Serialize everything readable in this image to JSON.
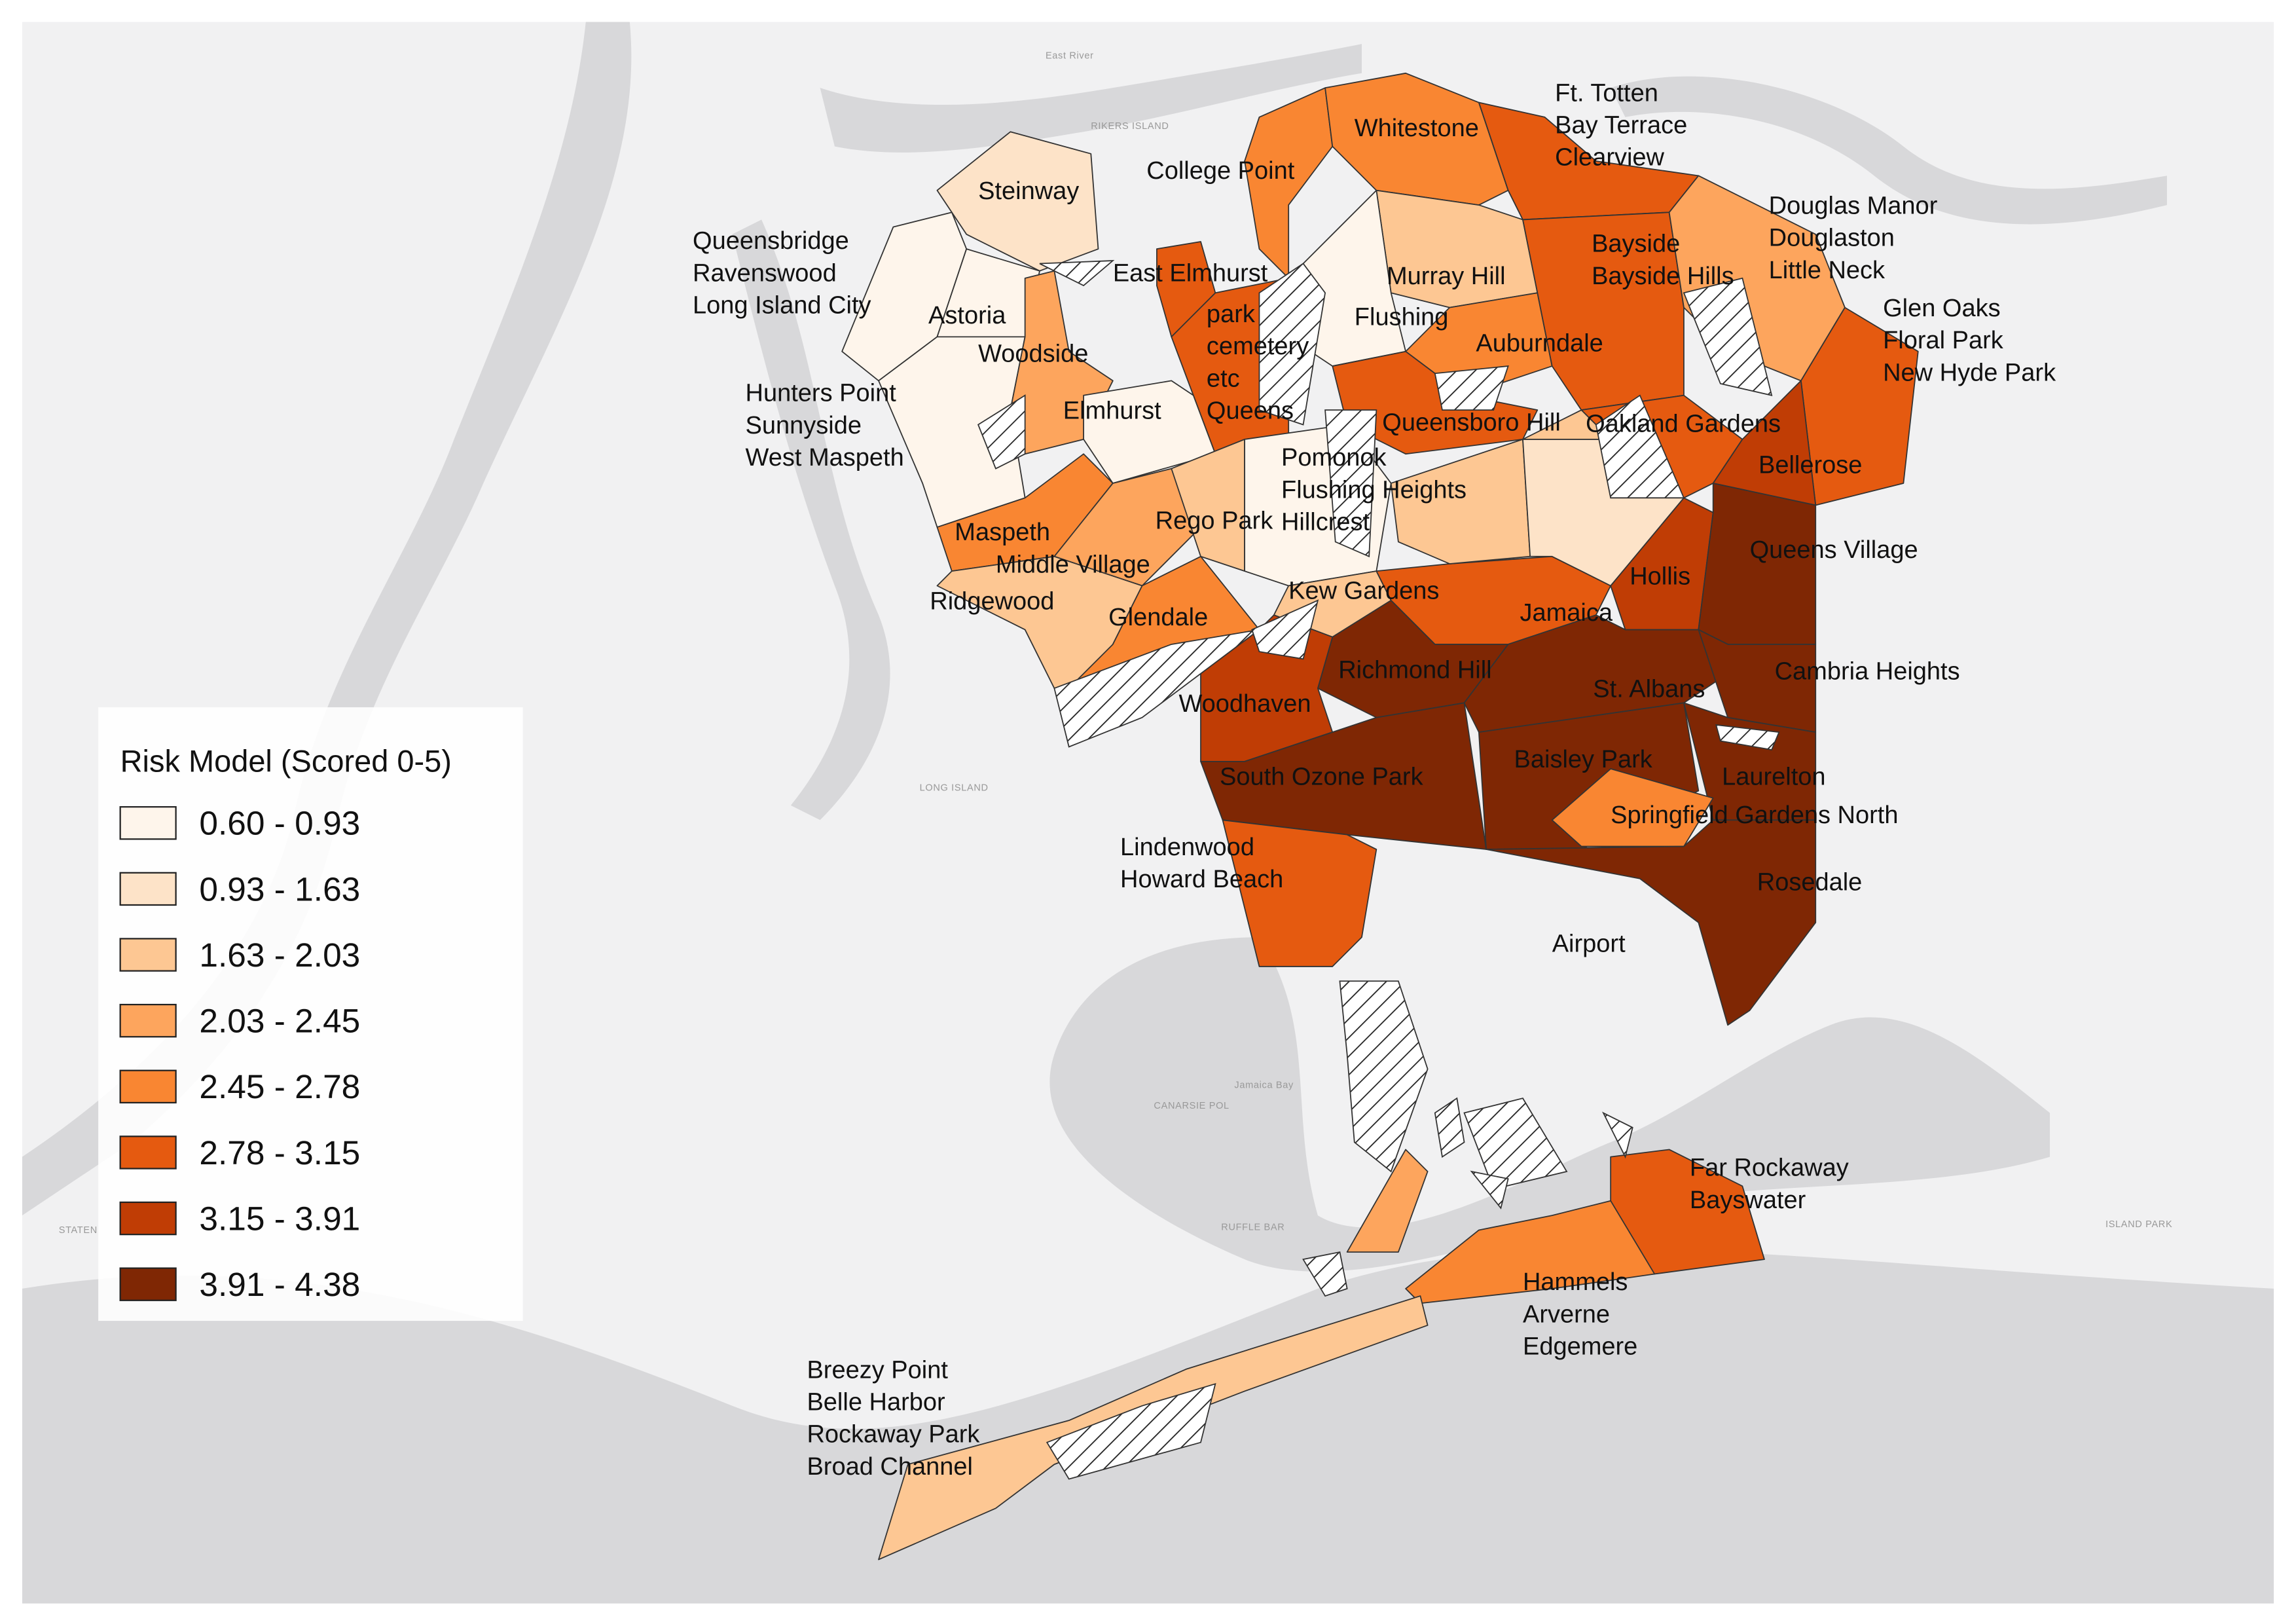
{
  "legend": {
    "title": "Risk Model (Scored 0-5)",
    "classes": [
      {
        "label": "0.60 - 0.93",
        "color": "#fef5eb"
      },
      {
        "label": "0.93 - 1.63",
        "color": "#fde3c8"
      },
      {
        "label": "1.63 - 2.03",
        "color": "#fdc793"
      },
      {
        "label": "2.03 - 2.45",
        "color": "#fda55d"
      },
      {
        "label": "2.45 - 2.78",
        "color": "#f98632"
      },
      {
        "label": "2.78 - 3.15",
        "color": "#e55a10"
      },
      {
        "label": "3.15 - 3.91",
        "color": "#c03d05"
      },
      {
        "label": "3.91 - 4.38",
        "color": "#7f2704"
      }
    ]
  },
  "regions": [
    {
      "label": [
        "Steinway"
      ],
      "color": "#fde3c8"
    },
    {
      "label": [
        "Queensbridge",
        "Ravenswood",
        "Long Island City"
      ],
      "color": "#fef5eb"
    },
    {
      "label": [
        "Astoria"
      ],
      "color": "#fef5eb"
    },
    {
      "label": [
        "Hunters Point",
        "Sunnyside",
        "West Maspeth"
      ],
      "color": "#fef5eb"
    },
    {
      "label": [
        "Woodside"
      ],
      "color": "#fda55d"
    },
    {
      "label": [
        "East Elmhurst"
      ],
      "color": "#e55a10"
    },
    {
      "label": [
        "park",
        "cemetery",
        "etc",
        "Queens"
      ],
      "color": "#e55a10"
    },
    {
      "label": [
        "Elmhurst"
      ],
      "color": "#fef5eb"
    },
    {
      "label": [
        "Maspeth"
      ],
      "color": "#f98632"
    },
    {
      "label": [
        "Middle Village"
      ],
      "color": "#fda55d"
    },
    {
      "label": [
        "Ridgewood"
      ],
      "color": "#fdc793"
    },
    {
      "label": [
        "Rego Park"
      ],
      "color": "#fdc793"
    },
    {
      "label": [
        "Glendale"
      ],
      "color": "#f98632"
    },
    {
      "label": [
        "College Point"
      ],
      "color": "#f98632"
    },
    {
      "label": [
        "Whitestone"
      ],
      "color": "#f98632"
    },
    {
      "label": [
        "Ft. Totten",
        "Bay Terrace",
        "Clearview"
      ],
      "color": "#e55a10"
    },
    {
      "label": [
        "Murray Hill"
      ],
      "color": "#fdc793"
    },
    {
      "label": [
        "Flushing"
      ],
      "color": "#fef5eb"
    },
    {
      "label": [
        "Auburndale"
      ],
      "color": "#f98632"
    },
    {
      "label": [
        "Bayside",
        "Bayside Hills"
      ],
      "color": "#e55a10"
    },
    {
      "label": [
        "Douglas Manor",
        "Douglaston",
        "Little Neck"
      ],
      "color": "#fda55d"
    },
    {
      "label": [
        "Glen Oaks",
        "Floral Park",
        "New Hyde Park"
      ],
      "color": "#e55a10"
    },
    {
      "label": [
        "Queensboro Hill"
      ],
      "color": "#e55a10"
    },
    {
      "label": [
        "Oakland Gardens"
      ],
      "color": "#e55a10"
    },
    {
      "label": [
        "Bellerose"
      ],
      "color": "#c03d05"
    },
    {
      "label": [
        "Pomonok",
        "Flushing Heights",
        "Hillcrest"
      ],
      "color": "#fef5eb"
    },
    {
      "label": [
        "Kew Gardens"
      ],
      "color": "#fdc793"
    },
    {
      "label": [
        "Jamaica"
      ],
      "color": "#e55a10"
    },
    {
      "label": [
        "Hollis"
      ],
      "color": "#c03d05"
    },
    {
      "label": [
        "Queens Village"
      ],
      "color": "#7f2704"
    },
    {
      "label": [
        "Richmond Hill"
      ],
      "color": "#7f2704"
    },
    {
      "label": [
        "Woodhaven"
      ],
      "color": "#c03d05"
    },
    {
      "label": [
        "St. Albans"
      ],
      "color": "#7f2704"
    },
    {
      "label": [
        "Cambria Heights"
      ],
      "color": "#7f2704"
    },
    {
      "label": [
        "South Ozone Park"
      ],
      "color": "#7f2704"
    },
    {
      "label": [
        "Baisley Park"
      ],
      "color": "#7f2704"
    },
    {
      "label": [
        "Laurelton"
      ],
      "color": "#7f2704"
    },
    {
      "label": [
        "Springfield Gardens North"
      ],
      "color": "#f98632"
    },
    {
      "label": [
        "Rosedale"
      ],
      "color": "#7f2704"
    },
    {
      "label": [
        "Lindenwood",
        "Howard Beach"
      ],
      "color": "#e55a10"
    },
    {
      "label": [
        "Far Rockaway",
        "Bayswater"
      ],
      "color": "#e55a10"
    },
    {
      "label": [
        "Hammels",
        "Arverne",
        "Edgemere"
      ],
      "color": "#f98632"
    },
    {
      "label": [
        "Breezy Point",
        "Belle Harbor",
        "Rockaway Park",
        "Broad Channel"
      ],
      "color": "#fdc793"
    },
    {
      "color": "#fda55d"
    },
    {
      "color": "#fdc793"
    },
    {
      "color": "#fde3c8"
    },
    {
      "color": "#fdc793"
    }
  ],
  "airport": {
    "label": "Airport"
  },
  "basemap_labels": [
    "East River",
    "RIKERS ISLAND",
    "LONG ISLAND",
    "Jamaica Bay",
    "CANARSIE POL",
    "RUFFLE BAR",
    "ISLAND PARK",
    "STATEN"
  ]
}
